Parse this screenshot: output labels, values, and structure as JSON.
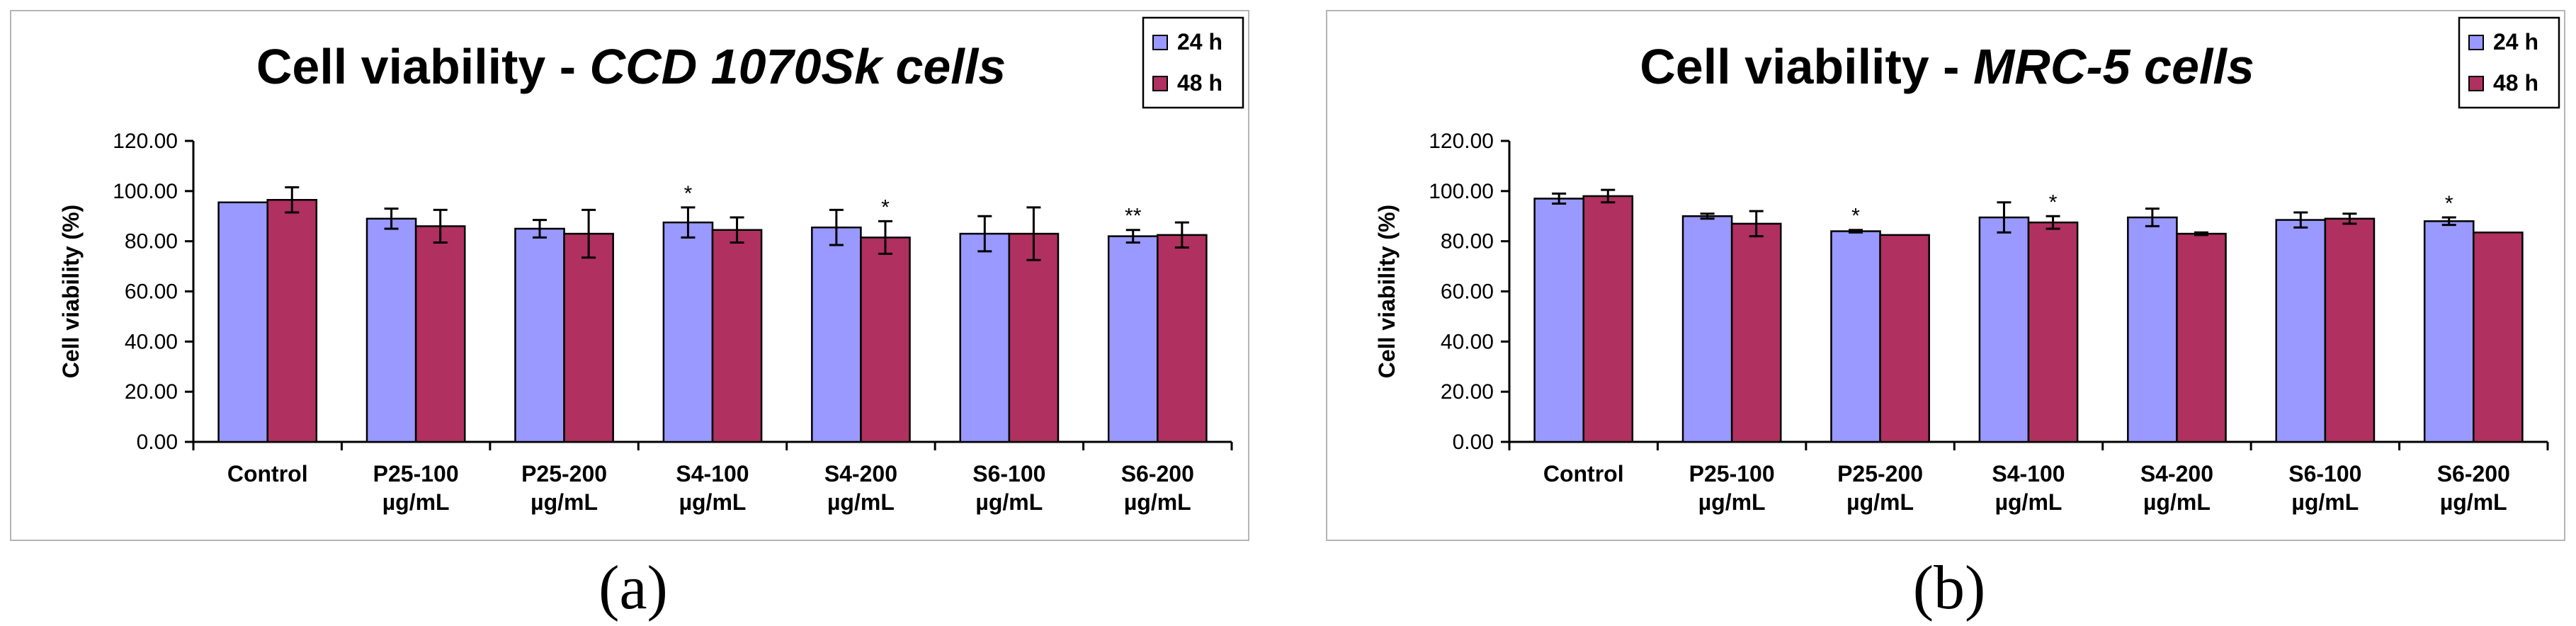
{
  "colors": {
    "h24": "#9999ff",
    "h48": "#b03060",
    "bar_edge": "#000000",
    "border": "#b5b5b5"
  },
  "panels": [
    {
      "panel_label": "(a)",
      "title_main": "Cell viability - ",
      "title_italic": "CCD 1070Sk cells"
    },
    {
      "panel_label": "(b)",
      "title_main": "Cell viability - ",
      "title_italic": "MRC-5 cells"
    }
  ],
  "chart_data": [
    {
      "type": "bar",
      "title": "Cell viability - CCD 1070Sk cells",
      "xlabel": "",
      "ylabel": "Cell viability (%)",
      "ylim": [
        0,
        120
      ],
      "yticks": [
        "0.00",
        "20.00",
        "40.00",
        "60.00",
        "80.00",
        "100.00",
        "120.00"
      ],
      "grid": false,
      "legend_position": "top-right",
      "categories": [
        [
          "Control"
        ],
        [
          "P25-100",
          "µg/mL"
        ],
        [
          "P25-200",
          "µg/mL"
        ],
        [
          "S4-100",
          "µg/mL"
        ],
        [
          "S4-200",
          "µg/mL"
        ],
        [
          "S6-100",
          "µg/mL"
        ],
        [
          "S6-200",
          "µg/mL"
        ]
      ],
      "series": [
        {
          "name": "24 h",
          "values": [
            95.5,
            89.0,
            85.0,
            87.5,
            85.5,
            83.0,
            82.0
          ],
          "errors": [
            0,
            4.0,
            3.5,
            6.0,
            7.0,
            7.0,
            2.5
          ],
          "annotations": [
            "",
            "",
            "",
            "*",
            "",
            "",
            "**"
          ]
        },
        {
          "name": "48 h",
          "values": [
            96.5,
            86.0,
            83.0,
            84.5,
            81.5,
            83.0,
            82.5
          ],
          "errors": [
            5.0,
            6.5,
            9.5,
            5.0,
            6.5,
            10.5,
            5.0
          ],
          "annotations": [
            "",
            "",
            "",
            "",
            "*",
            "",
            ""
          ]
        }
      ]
    },
    {
      "type": "bar",
      "title": "Cell viability - MRC-5 cells",
      "xlabel": "",
      "ylabel": "Cell viability (%)",
      "ylim": [
        0,
        120
      ],
      "yticks": [
        "0.00",
        "20.00",
        "40.00",
        "60.00",
        "80.00",
        "100.00",
        "120.00"
      ],
      "grid": false,
      "legend_position": "top-right",
      "categories": [
        [
          "Control"
        ],
        [
          "P25-100",
          "µg/mL"
        ],
        [
          "P25-200",
          "µg/mL"
        ],
        [
          "S4-100",
          "µg/mL"
        ],
        [
          "S4-200",
          "µg/mL"
        ],
        [
          "S6-100",
          "µg/mL"
        ],
        [
          "S6-200",
          "µg/mL"
        ]
      ],
      "series": [
        {
          "name": "24 h",
          "values": [
            97.0,
            90.0,
            84.0,
            89.5,
            89.5,
            88.5,
            88.0
          ],
          "errors": [
            2.0,
            1.0,
            0.5,
            6.0,
            3.5,
            3.0,
            1.5
          ],
          "annotations": [
            "",
            "",
            "*",
            "",
            "",
            "",
            "*"
          ]
        },
        {
          "name": "48 h",
          "values": [
            98.0,
            87.0,
            82.5,
            87.5,
            83.0,
            89.0,
            83.5
          ],
          "errors": [
            2.5,
            5.0,
            0,
            2.5,
            0.5,
            2.0,
            0
          ],
          "annotations": [
            "",
            "",
            "",
            "*",
            "",
            "",
            ""
          ]
        }
      ]
    }
  ]
}
